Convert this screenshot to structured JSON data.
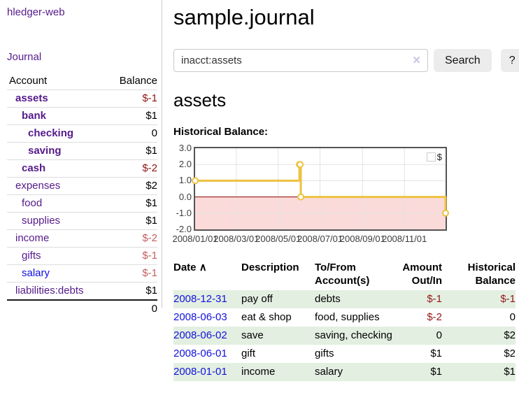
{
  "palette": {
    "purple_link": "#551a8b",
    "blue_link": "#0f0fdd",
    "negative_strong": "#8e1414",
    "negative_soft": "#c0605f",
    "table_negative": "#951717",
    "row_highlight_green": "#e3efe1",
    "chart_line": "#edc240",
    "chart_negative_fill": "#fbdada",
    "chart_zero_line": "#8b0000",
    "button_bg": "#ececec"
  },
  "sidebar": {
    "app_title": "hledger-web",
    "journal_link": "Journal",
    "accounts_table": {
      "headers": {
        "account": "Account",
        "balance": "Balance"
      },
      "rows": [
        {
          "name": "assets",
          "depth": 0,
          "emph": true,
          "balance": "$-1",
          "neg": "strong",
          "link": "purple"
        },
        {
          "name": "bank",
          "depth": 1,
          "emph": true,
          "balance": "$1",
          "neg": null,
          "link": "purple"
        },
        {
          "name": "checking",
          "depth": 2,
          "emph": true,
          "balance": "0",
          "neg": null,
          "link": "purple"
        },
        {
          "name": "saving",
          "depth": 2,
          "emph": true,
          "balance": "$1",
          "neg": null,
          "link": "purple"
        },
        {
          "name": "cash",
          "depth": 1,
          "emph": true,
          "balance": "$-2",
          "neg": "strong",
          "link": "purple"
        },
        {
          "name": "expenses",
          "depth": 0,
          "emph": false,
          "balance": "$2",
          "neg": null,
          "link": "purple"
        },
        {
          "name": "food",
          "depth": 1,
          "emph": false,
          "balance": "$1",
          "neg": null,
          "link": "purple"
        },
        {
          "name": "supplies",
          "depth": 1,
          "emph": false,
          "balance": "$1",
          "neg": null,
          "link": "purple"
        },
        {
          "name": "income",
          "depth": 0,
          "emph": false,
          "balance": "$-2",
          "neg": "soft",
          "link": "purple"
        },
        {
          "name": "gifts",
          "depth": 1,
          "emph": false,
          "balance": "$-1",
          "neg": "soft",
          "link": "purple"
        },
        {
          "name": "salary",
          "depth": 1,
          "emph": false,
          "balance": "$-1",
          "neg": "soft",
          "link": "blue"
        },
        {
          "name": "liabilities:debts",
          "depth": 0,
          "emph": false,
          "balance": "$1",
          "neg": null,
          "link": "purple"
        }
      ],
      "total": "0"
    }
  },
  "header": {
    "title": "sample.journal"
  },
  "search": {
    "value": "inacct:assets",
    "clear_icon": "✕",
    "search_button": "Search",
    "help_button": "?"
  },
  "account_page": {
    "heading": "assets",
    "chart_label": "Historical Balance:"
  },
  "chart_data": {
    "type": "line",
    "title": "Historical Balance:",
    "step": true,
    "series": [
      {
        "name": "$",
        "color": "#edc240",
        "points": [
          {
            "x": "2008-01-01",
            "y": 1
          },
          {
            "x": "2008-06-01",
            "y": 2
          },
          {
            "x": "2008-06-02",
            "y": 2
          },
          {
            "x": "2008-06-03",
            "y": 0
          },
          {
            "x": "2008-12-31",
            "y": -1
          }
        ]
      }
    ],
    "xlim": [
      "2008-01-01",
      "2008-12-31"
    ],
    "ylim": [
      -2,
      3
    ],
    "yticks": [
      {
        "v": 3,
        "label": "3.0"
      },
      {
        "v": 2,
        "label": "2.0"
      },
      {
        "v": 1,
        "label": "1.0"
      },
      {
        "v": 0,
        "label": "0.0"
      },
      {
        "v": -1,
        "label": "-1.0"
      },
      {
        "v": -2,
        "label": "-2.0"
      }
    ],
    "xticks": [
      {
        "x": "2008-01-01",
        "label": "2008/01/01"
      },
      {
        "x": "2008-03-01",
        "label": "2008/03/01"
      },
      {
        "x": "2008-05-01",
        "label": "2008/05/01"
      },
      {
        "x": "2008-07-01",
        "label": "2008/07/01"
      },
      {
        "x": "2008-09-01",
        "label": "2008/09/01"
      },
      {
        "x": "2008-11-01",
        "label": "2008/11/01"
      }
    ],
    "grid": true,
    "gridline_color": "#e3e3e3",
    "zero_line_color": "#8b0000",
    "negative_fill": "#fbdada",
    "legend": {
      "label": "$",
      "position": "top-right"
    }
  },
  "register_table": {
    "headers": {
      "date": "Date",
      "sort_icon": "∧",
      "description": "Description",
      "accounts": "To/From Account(s)",
      "amount": "Amount Out/In",
      "balance": "Historical Balance"
    },
    "rows": [
      {
        "date": "2008-12-31",
        "description": "pay off",
        "accounts": "debts",
        "amount": "$-1",
        "balance": "$-1"
      },
      {
        "date": "2008-06-03",
        "description": "eat & shop",
        "accounts": "food, supplies",
        "amount": "$-2",
        "balance": "0"
      },
      {
        "date": "2008-06-02",
        "description": "save",
        "accounts": "saving, checking",
        "amount": "0",
        "balance": "$2"
      },
      {
        "date": "2008-06-01",
        "description": "gift",
        "accounts": "gifts",
        "amount": "$1",
        "balance": "$2"
      },
      {
        "date": "2008-01-01",
        "description": "income",
        "accounts": "salary",
        "amount": "$1",
        "balance": "$1"
      }
    ]
  }
}
